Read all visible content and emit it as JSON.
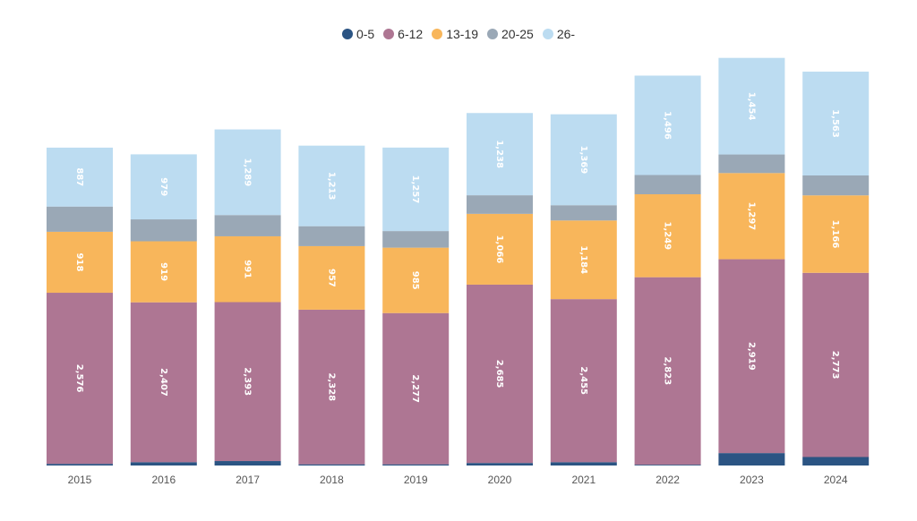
{
  "chart_data": {
    "type": "bar",
    "stacked": true,
    "categories": [
      "2015",
      "2016",
      "2017",
      "2018",
      "2019",
      "2020",
      "2021",
      "2022",
      "2023",
      "2024"
    ],
    "series": [
      {
        "name": "0-5",
        "color": "#2b5483",
        "values": [
          25,
          50,
          67,
          18,
          18,
          38,
          50,
          12,
          187,
          128
        ]
      },
      {
        "name": "6-12",
        "color": "#ae7693",
        "values": [
          2576,
          2407,
          2393,
          2328,
          2277,
          2685,
          2455,
          2823,
          2919,
          2773
        ]
      },
      {
        "name": "13-19",
        "color": "#f8b65b",
        "values": [
          918,
          919,
          991,
          957,
          985,
          1066,
          1184,
          1249,
          1297,
          1166
        ]
      },
      {
        "name": "20-25",
        "color": "#9aa8b6",
        "values": [
          380,
          330,
          320,
          300,
          250,
          280,
          230,
          290,
          280,
          300
        ]
      },
      {
        "name": "26-",
        "color": "#bcdcf1",
        "values": [
          887,
          979,
          1289,
          1213,
          1257,
          1238,
          1369,
          1496,
          1454,
          1563
        ]
      }
    ],
    "data_labels": {
      "6-12": [
        "2,576",
        "2,407",
        "2,393",
        "2,328",
        "2,277",
        "2,685",
        "2,455",
        "2,823",
        "2,919",
        "2,773"
      ],
      "13-19": [
        "918",
        "919",
        "991",
        "957",
        "985",
        "1,066",
        "1,184",
        "1,249",
        "1,297",
        "1,166"
      ],
      "26-": [
        "887",
        "979",
        "1,289",
        "1,213",
        "1,257",
        "1,238",
        "1,369",
        "1,496",
        "1,454",
        "1,563"
      ]
    },
    "ylim": [
      0,
      6200
    ],
    "grid": false,
    "legend_position": "top-center",
    "title": "",
    "xlabel": "",
    "ylabel": ""
  }
}
